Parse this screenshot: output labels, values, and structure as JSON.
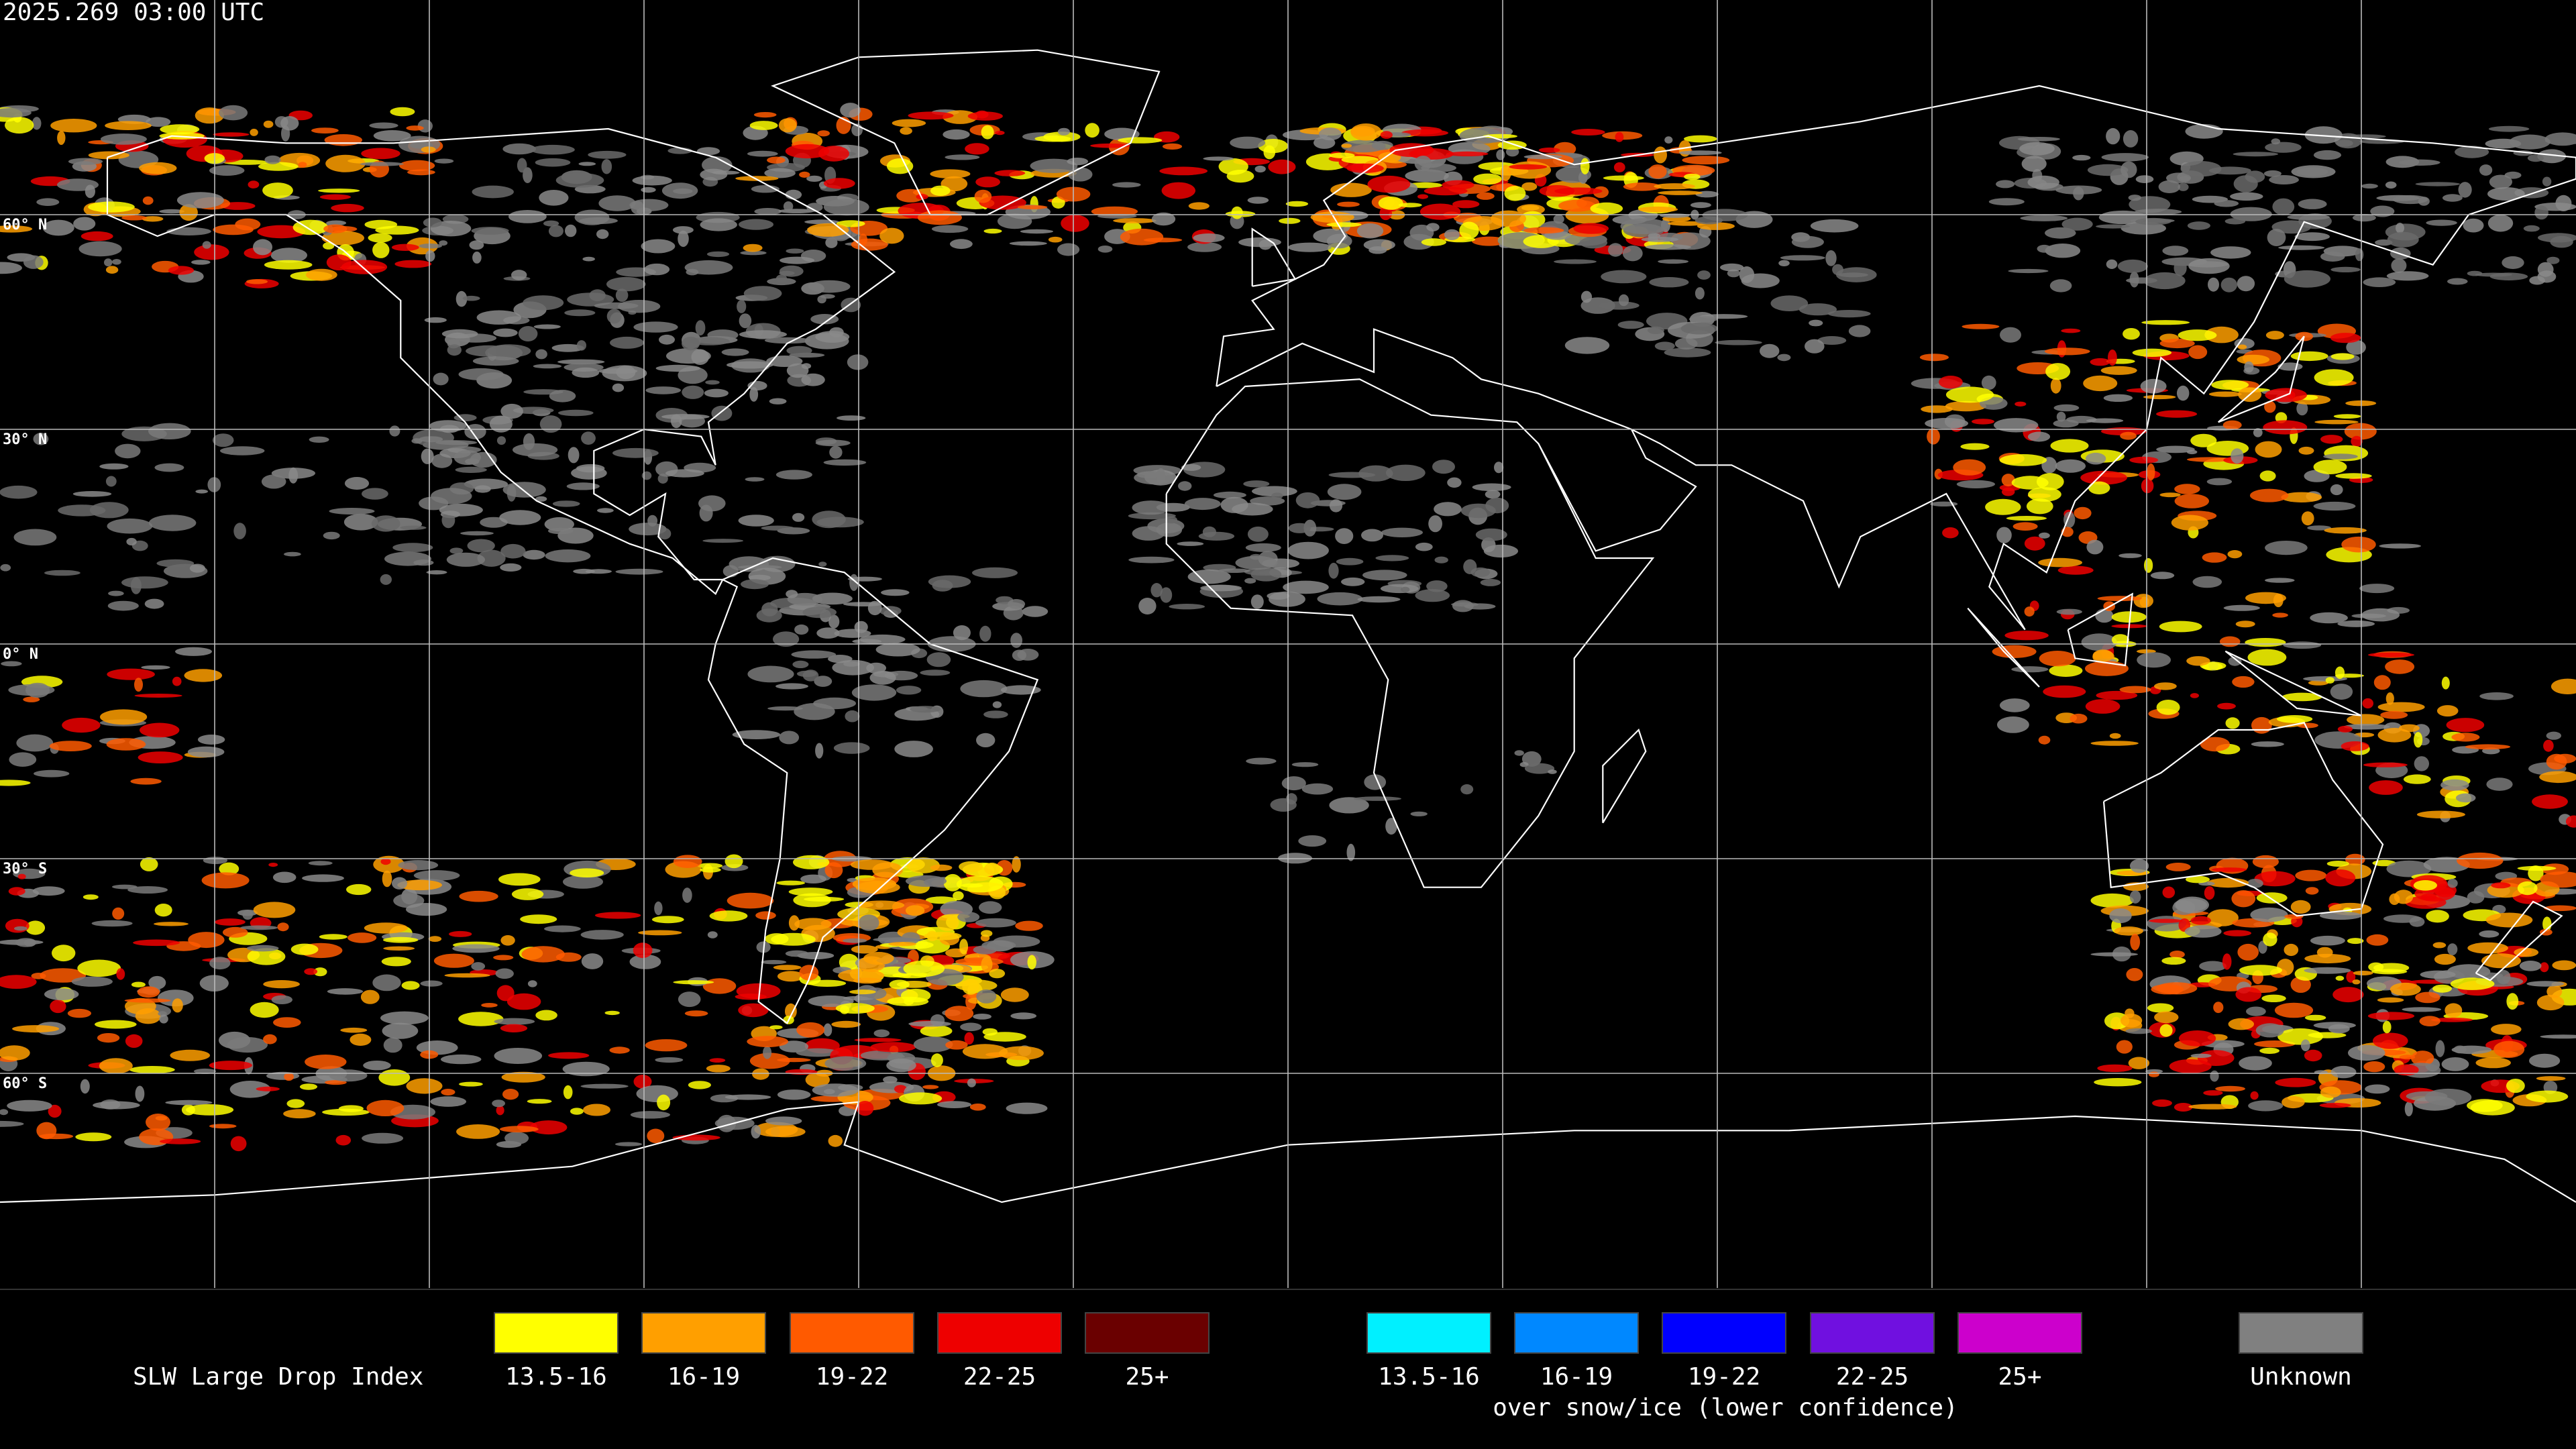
{
  "header": {
    "timestamp": "2025.269 03:00 UTC"
  },
  "map": {
    "lat_labels": [
      "60° N",
      "30° N",
      "0° N",
      "30° S",
      "60° S"
    ]
  },
  "legend": {
    "title": "SLW Large Drop Index",
    "items": [
      {
        "label": "13.5-16",
        "color": "#ffff00"
      },
      {
        "label": "16-19",
        "color": "#ff9f00"
      },
      {
        "label": "19-22",
        "color": "#ff5a00"
      },
      {
        "label": "22-25",
        "color": "#ee0000"
      },
      {
        "label": "25+",
        "color": "#6a0000"
      }
    ],
    "snow_items": [
      {
        "label": "13.5-16",
        "color": "#00f0ff"
      },
      {
        "label": "16-19",
        "color": "#0088ff"
      },
      {
        "label": "19-22",
        "color": "#0000ff"
      },
      {
        "label": "22-25",
        "color": "#7010e0"
      },
      {
        "label": "25+",
        "color": "#cc00cc"
      }
    ],
    "snow_note": "over snow/ice (lower confidence)",
    "unknown": {
      "label": "Unknown",
      "color": "#808080"
    }
  }
}
